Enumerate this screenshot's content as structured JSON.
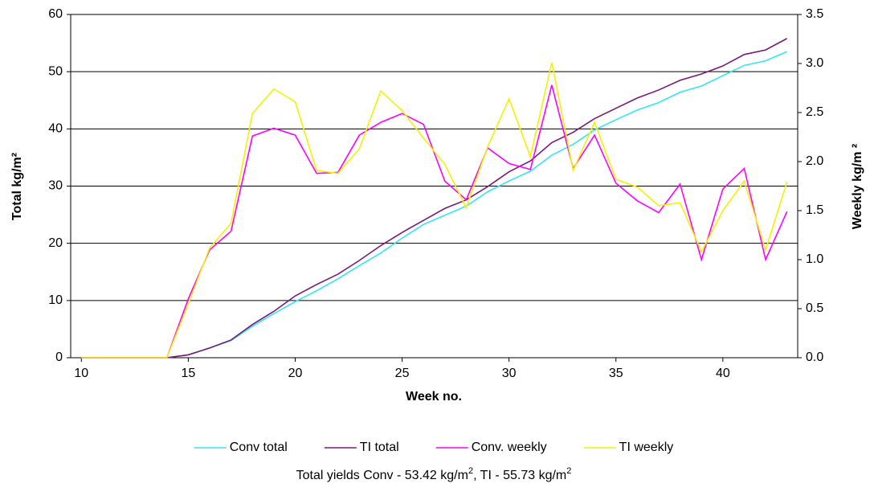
{
  "chart_data": {
    "type": "line",
    "x_label": "Week no.",
    "y_label": "Total kg/m²",
    "y2_label": "Weekly kg/m ²",
    "note": [
      "Total yields Conv - 53.42 kg/m",
      "2",
      ", TI - 55.73 kg/m",
      "2"
    ],
    "x": [
      10,
      11,
      12,
      13,
      14,
      15,
      16,
      17,
      18,
      19,
      20,
      21,
      22,
      23,
      24,
      25,
      26,
      27,
      28,
      29,
      30,
      31,
      32,
      33,
      34,
      35,
      36,
      37,
      38,
      39,
      40,
      41,
      42,
      43
    ],
    "xlim": [
      9.5,
      43.5
    ],
    "xticks": [
      10,
      15,
      20,
      25,
      30,
      35,
      40
    ],
    "ylim": [
      0,
      60
    ],
    "yticks": [
      0,
      10,
      20,
      30,
      40,
      50,
      60
    ],
    "y2lim": [
      0,
      3.5
    ],
    "y2ticks": [
      {
        "value": 0,
        "label": "0.0"
      },
      0.5,
      {
        "value": 1,
        "label": "1.0"
      },
      1.5,
      {
        "value": 2,
        "label": "2.0"
      },
      2.5,
      {
        "value": 3,
        "label": "3.0"
      },
      3.5
    ],
    "grid": true,
    "legend": "bottom",
    "series": [
      {
        "name": "Conv total",
        "color": "#33e6f0",
        "values": [
          0,
          0,
          0,
          0,
          0,
          0.5,
          1.7,
          3,
          5.5,
          7.7,
          9.8,
          11.7,
          13.8,
          16.1,
          18.3,
          20.9,
          23.3,
          24.9,
          26.5,
          29,
          30.9,
          32.6,
          35.4,
          37.3,
          39.8,
          41.6,
          43.3,
          44.6,
          46.4,
          47.5,
          49.3,
          51.1,
          51.9,
          53.5
        ]
      },
      {
        "name": "TI total",
        "color": "#7a1a78",
        "values": [
          0,
          0,
          0,
          0,
          0,
          0.5,
          1.7,
          3.1,
          5.8,
          8.1,
          10.8,
          12.8,
          14.6,
          17,
          19.6,
          21.9,
          24,
          26.1,
          27.6,
          29.9,
          32.5,
          34.4,
          37.6,
          39.4,
          41.8,
          43.6,
          45.4,
          46.8,
          48.5,
          49.6,
          51,
          53,
          53.8,
          55.8
        ]
      },
      {
        "name": "Conv. weekly",
        "color": "#ff00ff",
        "axis": "y2",
        "values": [
          0,
          0,
          0,
          0,
          0,
          0.6,
          1.1,
          1.29,
          2.26,
          2.34,
          2.27,
          1.88,
          1.89,
          2.27,
          2.4,
          2.49,
          2.38,
          1.8,
          1.61,
          2.14,
          1.98,
          1.92,
          2.78,
          1.93,
          2.27,
          1.78,
          1.6,
          1.48,
          1.77,
          1,
          1.72,
          1.93,
          1,
          1.49
        ]
      },
      {
        "name": "TI weekly",
        "color": "#f2f200",
        "axis": "y2",
        "values": [
          0,
          0,
          0,
          0,
          0,
          0.55,
          1.12,
          1.37,
          2.49,
          2.74,
          2.61,
          1.91,
          1.88,
          2.13,
          2.72,
          2.52,
          2.24,
          1.97,
          1.53,
          2.15,
          2.64,
          2.05,
          3.01,
          1.91,
          2.4,
          1.82,
          1.74,
          1.55,
          1.58,
          1.08,
          1.5,
          1.8,
          1.1,
          1.79
        ]
      }
    ]
  }
}
